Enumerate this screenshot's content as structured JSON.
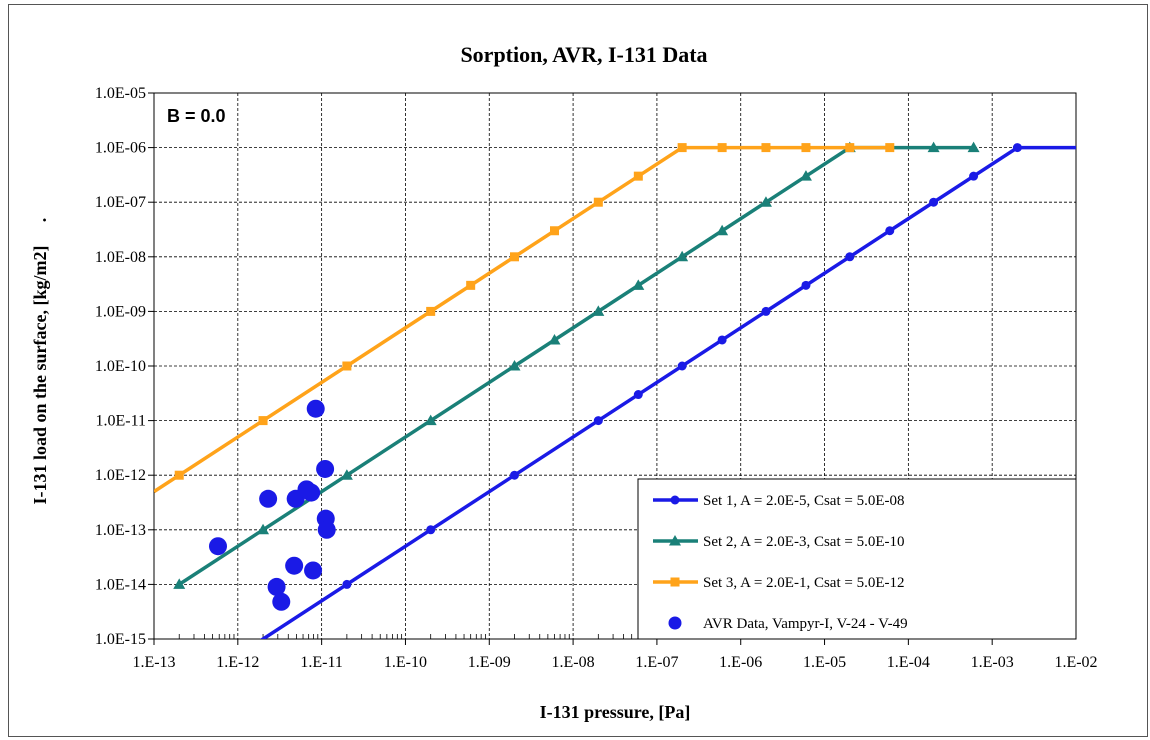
{
  "chart_data": {
    "type": "scatter",
    "title": "Sorption, AVR, I-131 Data",
    "xlabel": "I-131 pressure,  [Pa]",
    "ylabel": "I-131 load on the surface,  [kg/m2]",
    "ylabel_suffix": ".",
    "annotation": "B = 0.0",
    "x_scale": "log",
    "y_scale": "log",
    "xlim": [
      1e-13,
      0.01
    ],
    "ylim": [
      1e-15,
      1e-05
    ],
    "grid": true,
    "legend_position": "bottom-right",
    "x_ticks": [
      {
        "value": 1e-13,
        "label": "1.E-13"
      },
      {
        "value": 1e-12,
        "label": "1.E-12"
      },
      {
        "value": 1e-11,
        "label": "1.E-11"
      },
      {
        "value": 1e-10,
        "label": "1.E-10"
      },
      {
        "value": 1e-09,
        "label": "1.E-09"
      },
      {
        "value": 1e-08,
        "label": "1.E-08"
      },
      {
        "value": 1e-07,
        "label": "1.E-07"
      },
      {
        "value": 1e-06,
        "label": "1.E-06"
      },
      {
        "value": 1e-05,
        "label": "1.E-05"
      },
      {
        "value": 0.0001,
        "label": "1.E-04"
      },
      {
        "value": 0.001,
        "label": "1.E-03"
      },
      {
        "value": 0.01,
        "label": "1.E-02"
      }
    ],
    "y_ticks": [
      {
        "value": 1e-05,
        "label": "1.0E-05"
      },
      {
        "value": 1e-06,
        "label": "1.0E-06"
      },
      {
        "value": 1e-07,
        "label": "1.0E-07"
      },
      {
        "value": 1e-08,
        "label": "1.0E-08"
      },
      {
        "value": 1e-09,
        "label": "1.0E-09"
      },
      {
        "value": 1e-10,
        "label": "1.0E-10"
      },
      {
        "value": 1e-11,
        "label": "1.0E-11"
      },
      {
        "value": 1e-12,
        "label": "1.0E-12"
      },
      {
        "value": 1e-13,
        "label": "1.0E-13"
      },
      {
        "value": 1e-14,
        "label": "1.0E-14"
      },
      {
        "value": 1e-15,
        "label": "1.0E-15"
      }
    ],
    "series": [
      {
        "name": "Set 1, A = 2.0E-5, Csat = 5.0E-08",
        "color": "#1a1ae6",
        "marker": "circle",
        "line": [
          [
            1e-13,
            5e-17
          ],
          [
            0.002,
            1e-06
          ],
          [
            0.01,
            1e-06
          ]
        ],
        "markers": [
          [
            2e-11,
            1e-14
          ],
          [
            2e-10,
            1e-13
          ],
          [
            2e-09,
            1e-12
          ],
          [
            2e-08,
            1e-11
          ],
          [
            6e-08,
            3e-11
          ],
          [
            2e-07,
            1e-10
          ],
          [
            6e-07,
            3e-10
          ],
          [
            2e-06,
            1e-09
          ],
          [
            6e-06,
            3e-09
          ],
          [
            2e-05,
            1e-08
          ],
          [
            6e-05,
            3e-08
          ],
          [
            0.0002,
            1e-07
          ],
          [
            0.0006,
            3e-07
          ],
          [
            0.002,
            1e-06
          ]
        ]
      },
      {
        "name": "Set 2, A = 2.0E-3, Csat = 5.0E-10",
        "color": "#1a8078",
        "marker": "triangle",
        "line": [
          [
            2e-13,
            1e-14
          ],
          [
            2e-05,
            1e-06
          ],
          [
            0.0006,
            1e-06
          ]
        ],
        "markers": [
          [
            2e-13,
            1e-14
          ],
          [
            2e-12,
            1e-13
          ],
          [
            2e-11,
            1e-12
          ],
          [
            2e-10,
            1e-11
          ],
          [
            2e-09,
            1e-10
          ],
          [
            6e-09,
            3e-10
          ],
          [
            2e-08,
            1e-09
          ],
          [
            6e-08,
            3e-09
          ],
          [
            2e-07,
            1e-08
          ],
          [
            6e-07,
            3e-08
          ],
          [
            2e-06,
            1e-07
          ],
          [
            6e-06,
            3e-07
          ],
          [
            2e-05,
            1e-06
          ],
          [
            0.0002,
            1e-06
          ],
          [
            0.0006,
            1e-06
          ]
        ]
      },
      {
        "name": "Set 3, A = 2.0E-1, Csat = 5.0E-12",
        "color": "#ffa31a",
        "marker": "square",
        "line": [
          [
            1e-13,
            5e-13
          ],
          [
            2e-07,
            1e-06
          ],
          [
            6e-05,
            1e-06
          ]
        ],
        "markers": [
          [
            2e-13,
            1e-12
          ],
          [
            2e-12,
            1e-11
          ],
          [
            2e-11,
            1e-10
          ],
          [
            2e-10,
            1e-09
          ],
          [
            6e-10,
            3e-09
          ],
          [
            2e-09,
            1e-08
          ],
          [
            6e-09,
            3e-08
          ],
          [
            2e-08,
            1e-07
          ],
          [
            6e-08,
            3e-07
          ],
          [
            2e-07,
            1e-06
          ],
          [
            6e-07,
            1e-06
          ],
          [
            2e-06,
            1e-06
          ],
          [
            6e-06,
            1e-06
          ],
          [
            2e-05,
            1e-06
          ],
          [
            6e-05,
            1e-06
          ]
        ]
      },
      {
        "name": "AVR Data, Vampyr-I, V-24 - V-49",
        "color": "#1a1ae6",
        "marker": "circle-large",
        "line": [],
        "markers": [
          [
            5.8e-13,
            5e-14
          ],
          [
            2.3e-12,
            3.7e-13
          ],
          [
            2.9e-12,
            9e-15
          ],
          [
            3.3e-12,
            4.8e-15
          ],
          [
            4.7e-12,
            2.2e-14
          ],
          [
            4.9e-12,
            3.7e-13
          ],
          [
            6.6e-12,
            5.5e-13
          ],
          [
            7.5e-12,
            4.8e-13
          ],
          [
            7.9e-12,
            1.8e-14
          ],
          [
            8.5e-12,
            1.65e-11
          ],
          [
            1.1e-11,
            1.3e-12
          ],
          [
            1.12e-11,
            1.6e-13
          ],
          [
            1.15e-11,
            1e-13
          ]
        ]
      }
    ]
  }
}
